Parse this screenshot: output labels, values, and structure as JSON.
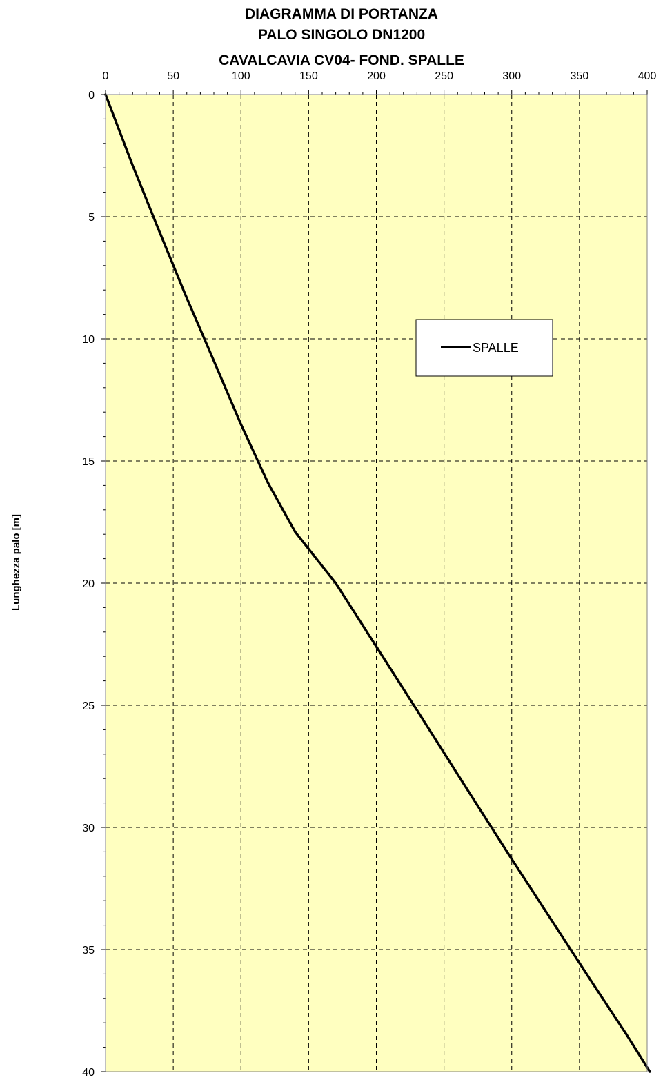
{
  "chart_data": {
    "type": "line",
    "title_lines": [
      "DIAGRAMMA DI PORTANZA",
      "PALO SINGOLO DN1200",
      "CAVALCAVIA CV04- FOND. SPALLE"
    ],
    "xlabel": "",
    "ylabel": "Lunghezza palo [m]",
    "xlim": [
      0,
      400
    ],
    "ylim": [
      0,
      40
    ],
    "y_inverted": true,
    "x_axis_position": "top",
    "x_ticks": [
      "0",
      "50",
      "100",
      "150",
      "200",
      "250",
      "300",
      "350",
      "400"
    ],
    "y_ticks": [
      "0",
      "5",
      "10",
      "15",
      "20",
      "25",
      "30",
      "35",
      "40"
    ],
    "grid": true,
    "plot_background": "#FFFFC0",
    "legend": {
      "position": "right-upper",
      "entries": [
        "SPALLE"
      ]
    },
    "series": [
      {
        "name": "SPALLE",
        "color": "#000000",
        "points": [
          [
            0,
            0
          ],
          [
            20,
            2.9
          ],
          [
            39,
            5.5
          ],
          [
            59,
            8.2
          ],
          [
            80,
            10.9
          ],
          [
            100,
            13.5
          ],
          [
            120,
            15.9
          ],
          [
            140,
            17.9
          ],
          [
            170,
            20.0
          ],
          [
            200,
            22.6
          ],
          [
            230,
            25.2
          ],
          [
            262,
            28.0
          ],
          [
            300,
            31.3
          ],
          [
            340,
            34.7
          ],
          [
            360,
            36.4
          ],
          [
            385,
            38.5
          ],
          [
            402,
            40.0
          ]
        ]
      }
    ]
  }
}
